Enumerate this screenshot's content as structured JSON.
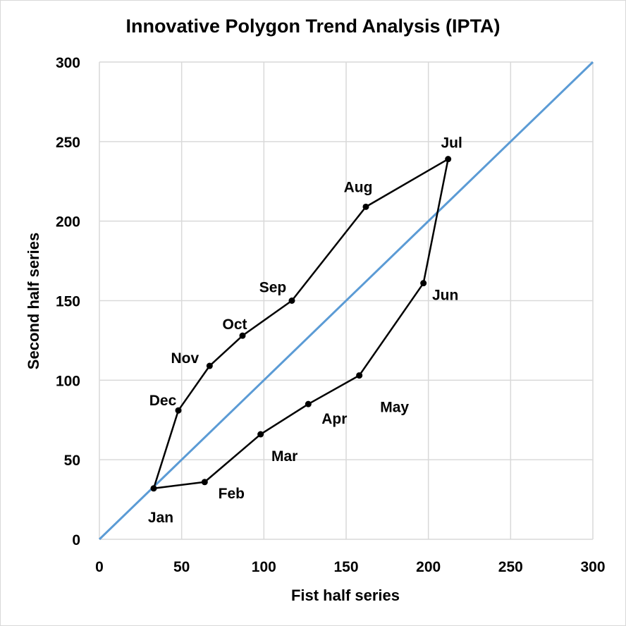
{
  "chart_data": {
    "type": "scatter",
    "title": "Innovative Polygon Trend Analysis (IPTA)",
    "xlabel": "Fist half series",
    "ylabel": "Second half series",
    "xlim": [
      0,
      300
    ],
    "ylim": [
      0,
      300
    ],
    "xticks": [
      0,
      50,
      100,
      150,
      200,
      250,
      300
    ],
    "yticks": [
      0,
      50,
      100,
      150,
      200,
      250,
      300
    ],
    "grid": true,
    "reference_line": {
      "x": [
        0,
        300
      ],
      "y": [
        0,
        300
      ],
      "color": "#5b9bd5"
    },
    "polygon_color": "#000000",
    "polygon_closed": false,
    "points": [
      {
        "label": "Jan",
        "x": 33,
        "y": 32
      },
      {
        "label": "Feb",
        "x": 64,
        "y": 36
      },
      {
        "label": "Mar",
        "x": 98,
        "y": 66
      },
      {
        "label": "Apr",
        "x": 127,
        "y": 85
      },
      {
        "label": "May",
        "x": 158,
        "y": 103
      },
      {
        "label": "Jun",
        "x": 197,
        "y": 161
      },
      {
        "label": "Jul",
        "x": 212,
        "y": 239
      },
      {
        "label": "Aug",
        "x": 162,
        "y": 209
      },
      {
        "label": "Sep",
        "x": 117,
        "y": 150
      },
      {
        "label": "Oct",
        "x": 87,
        "y": 128
      },
      {
        "label": "Nov",
        "x": 67,
        "y": 109
      },
      {
        "label": "Dec",
        "x": 48,
        "y": 81
      },
      {
        "label": "Jan",
        "x": 33,
        "y": 32
      }
    ]
  }
}
